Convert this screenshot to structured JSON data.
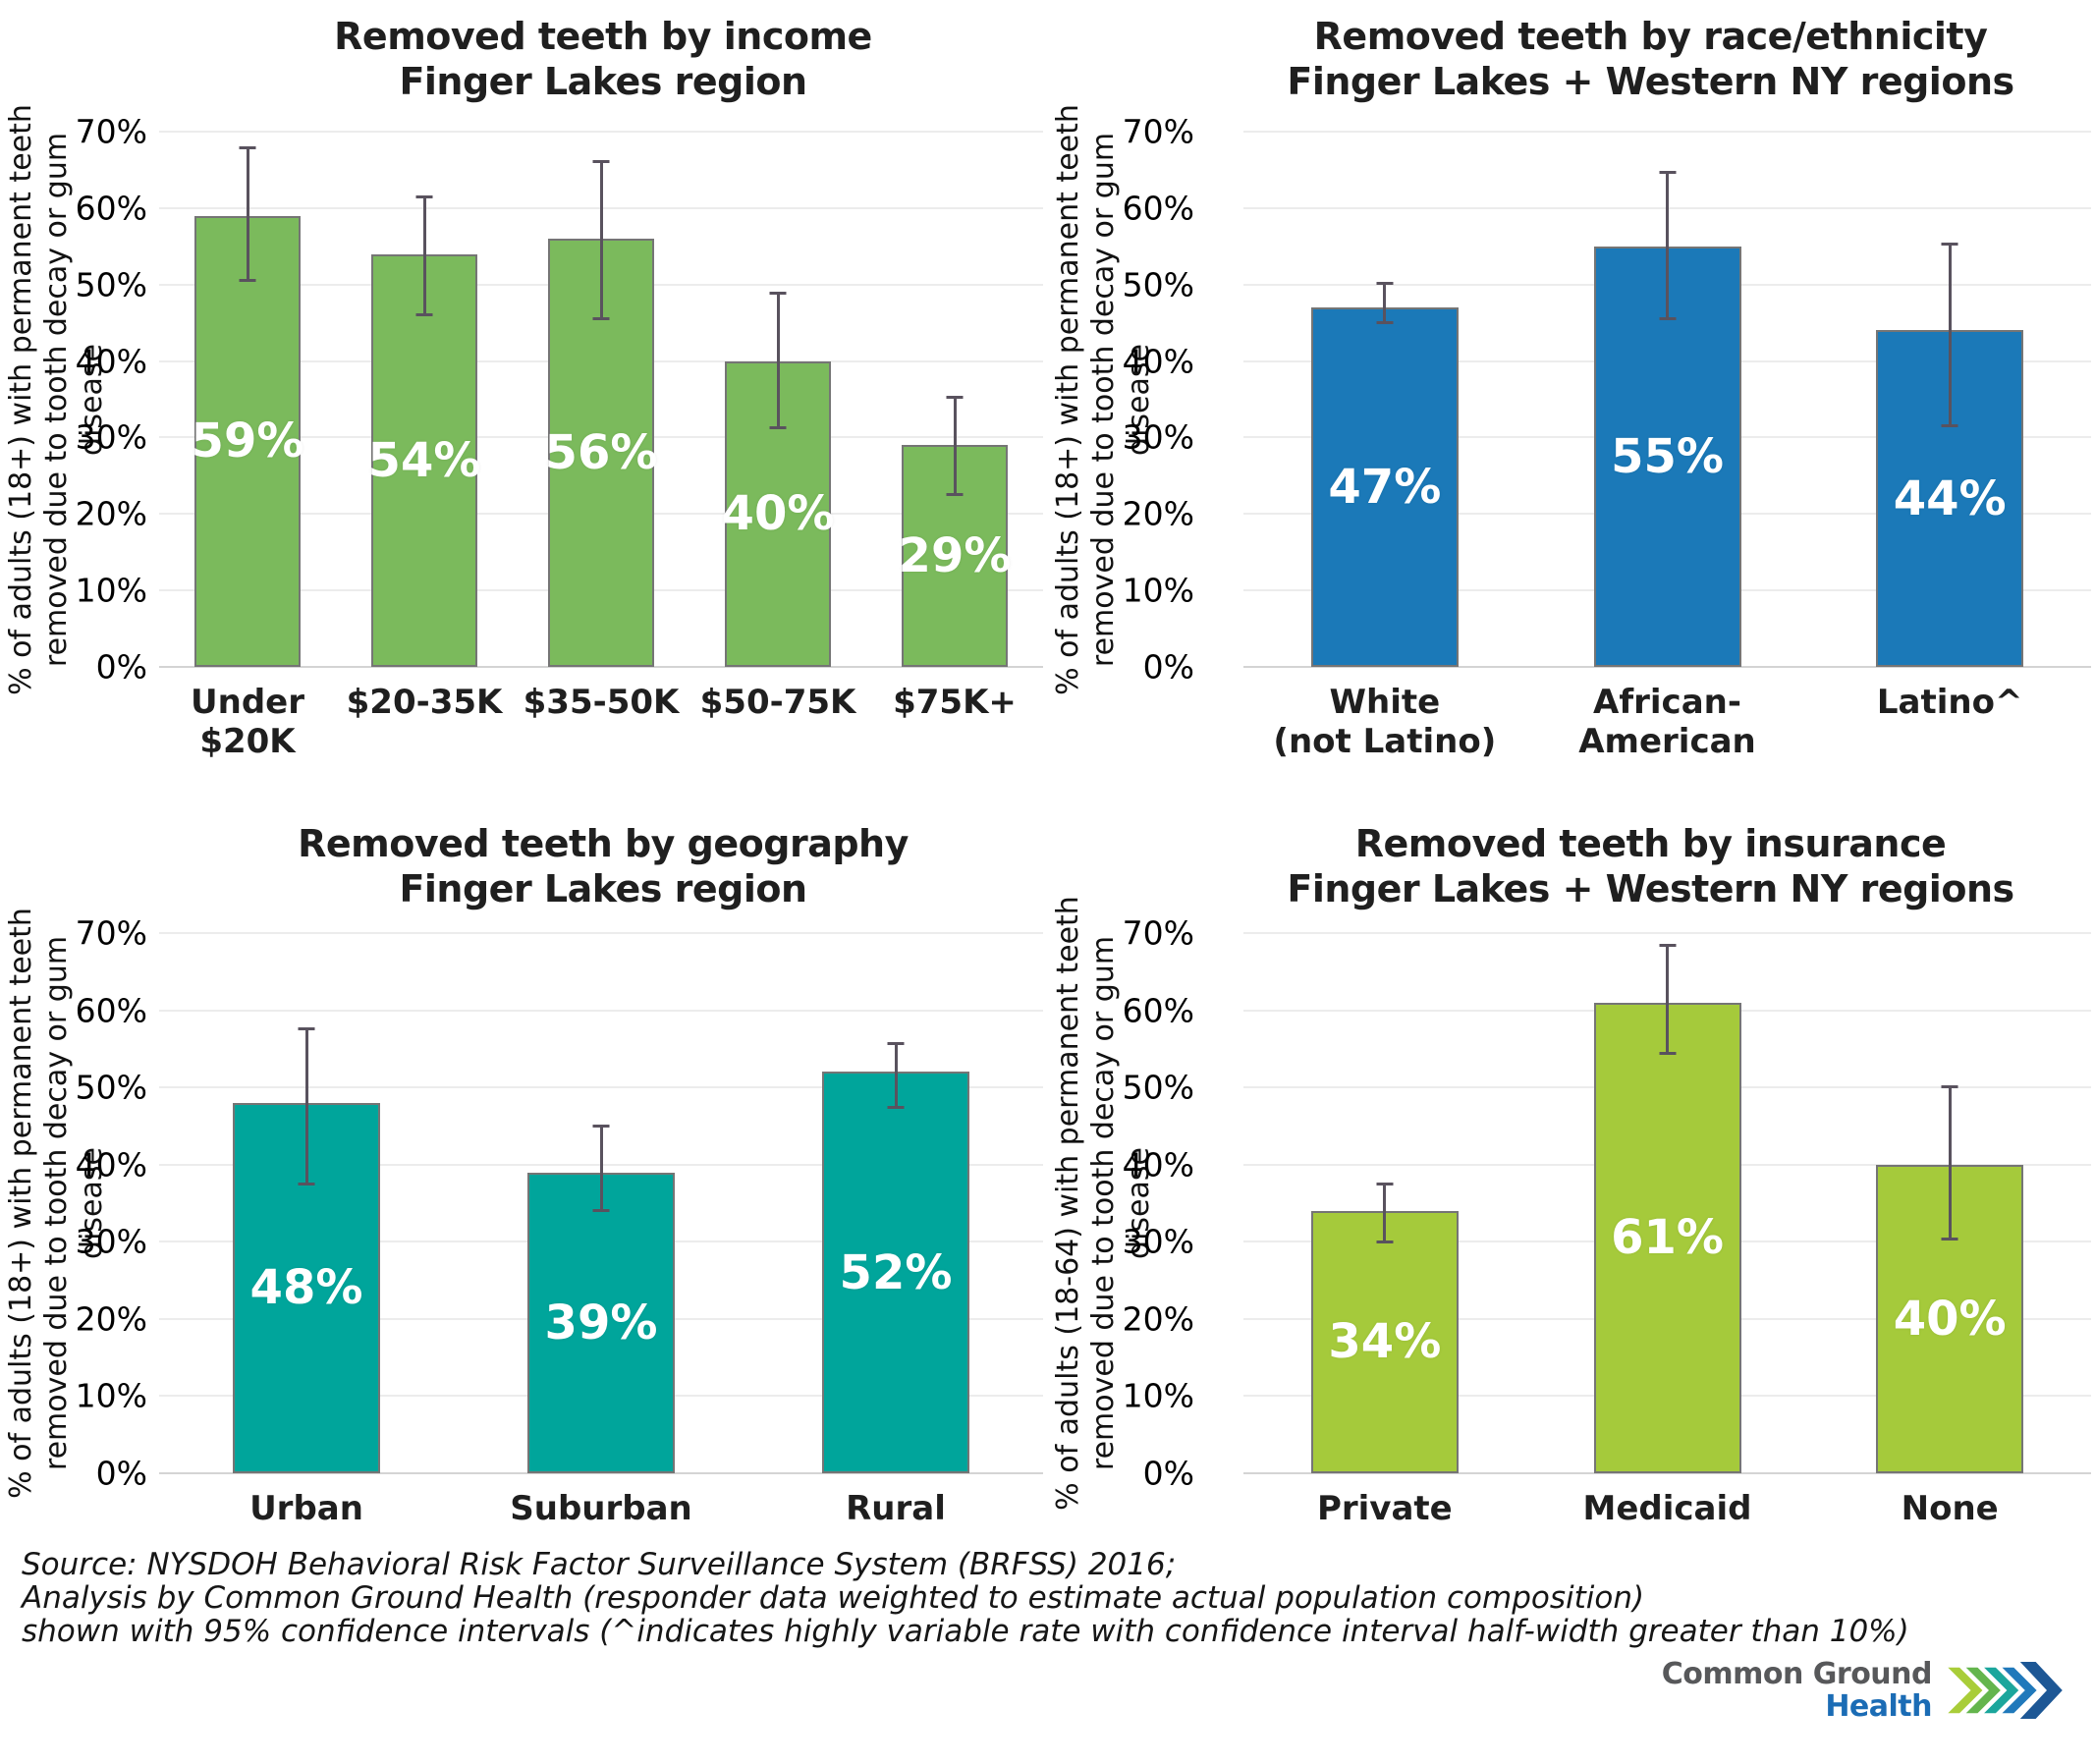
{
  "colors": {
    "error_bar": "#59525e",
    "gridline": "#ececec",
    "baseline": "#d4d4d4",
    "bar_border": "#757575",
    "bar_label_text": "#ffffff"
  },
  "chart_data": [
    {
      "id": "income",
      "type": "bar",
      "title_line1": "Removed teeth by income",
      "title_line2": "Finger Lakes region",
      "ylabel_line1": "% of adults (18+) with permanent teeth",
      "ylabel_line2": "removed due to tooth decay or gum disease",
      "bar_color": "#7bba5c",
      "categories": [
        "Under\n$20K",
        "$20-35K",
        "$35-50K",
        "$50-75K",
        "$75K+"
      ],
      "values": [
        59,
        54,
        56,
        40,
        29
      ],
      "value_labels": [
        "59%",
        "54%",
        "56%",
        "40%",
        "29%"
      ],
      "ci_low": [
        50.5,
        46.0,
        45.5,
        31.2,
        22.5
      ],
      "ci_high": [
        68.0,
        61.5,
        66.2,
        49.0,
        35.3
      ],
      "ylim": [
        0,
        70
      ],
      "yticks": [
        "0%",
        "10%",
        "20%",
        "30%",
        "40%",
        "50%",
        "60%",
        "70%"
      ],
      "grid": true,
      "error_bars": "95% confidence interval"
    },
    {
      "id": "race-ethnicity",
      "type": "bar",
      "title_line1": "Removed teeth by race/ethnicity",
      "title_line2": "Finger Lakes + Western NY regions",
      "ylabel_line1": "% of adults (18+) with permanent teeth",
      "ylabel_line2": "removed due to tooth decay or gum disease",
      "bar_color": "#1b79b8",
      "categories": [
        "White\n(not Latino)",
        "African-\nAmerican",
        "Latino^"
      ],
      "values": [
        47,
        55,
        44
      ],
      "value_labels": [
        "47%",
        "55%",
        "44%"
      ],
      "ci_low": [
        44.9,
        45.5,
        31.5
      ],
      "ci_high": [
        50.2,
        64.8,
        55.4
      ],
      "ylim": [
        0,
        70
      ],
      "yticks": [
        "0%",
        "10%",
        "20%",
        "30%",
        "40%",
        "50%",
        "60%",
        "70%"
      ],
      "grid": true,
      "error_bars": "95% confidence interval"
    },
    {
      "id": "geography",
      "type": "bar",
      "title_line1": "Removed teeth by geography",
      "title_line2": "Finger Lakes region",
      "ylabel_line1": "% of adults (18+) with permanent teeth",
      "ylabel_line2": "removed due to tooth decay or gum disease",
      "bar_color": "#00a59b",
      "categories": [
        "Urban",
        "Suburban",
        "Rural"
      ],
      "values": [
        48,
        39,
        52
      ],
      "value_labels": [
        "48%",
        "39%",
        "52%"
      ],
      "ci_low": [
        37.4,
        34.0,
        47.4
      ],
      "ci_high": [
        57.6,
        45.0,
        55.8
      ],
      "ylim": [
        0,
        70
      ],
      "yticks": [
        "0%",
        "10%",
        "20%",
        "30%",
        "40%",
        "50%",
        "60%",
        "70%"
      ],
      "grid": true,
      "error_bars": "95% confidence interval"
    },
    {
      "id": "insurance",
      "type": "bar",
      "title_line1": "Removed teeth by insurance",
      "title_line2": "Finger Lakes + Western NY regions",
      "ylabel_line1": "% of adults (18-64) with permanent teeth",
      "ylabel_line2": "removed due to tooth decay or gum disease",
      "bar_color": "#a5ca3b",
      "categories": [
        "Private",
        "Medicaid",
        "None"
      ],
      "values": [
        34,
        61,
        40
      ],
      "value_labels": [
        "34%",
        "61%",
        "40%"
      ],
      "ci_low": [
        29.9,
        54.4,
        30.3
      ],
      "ci_high": [
        37.6,
        68.5,
        50.1
      ],
      "ylim": [
        0,
        70
      ],
      "yticks": [
        "0%",
        "10%",
        "20%",
        "30%",
        "40%",
        "50%",
        "60%",
        "70%"
      ],
      "grid": true,
      "error_bars": "95% confidence interval"
    }
  ],
  "footer": {
    "source_line1": "Source: NYSDOH Behavioral Risk Factor Surveillance System (BRFSS) 2016;",
    "source_line2": "Analysis by Common Ground Health (responder data weighted to estimate actual population composition)",
    "source_line3": "shown with 95% confidence intervals (^indicates highly variable rate with confidence interval half-width greater than 10%)"
  },
  "logo": {
    "line1": "Common Ground",
    "line2": "Health",
    "line1_color": "#57585a",
    "line2_color": "#1b6cb5",
    "chevron_colors": [
      "#a9cd39",
      "#64b54d",
      "#1ba69c",
      "#2079bb",
      "#1d5795"
    ]
  }
}
